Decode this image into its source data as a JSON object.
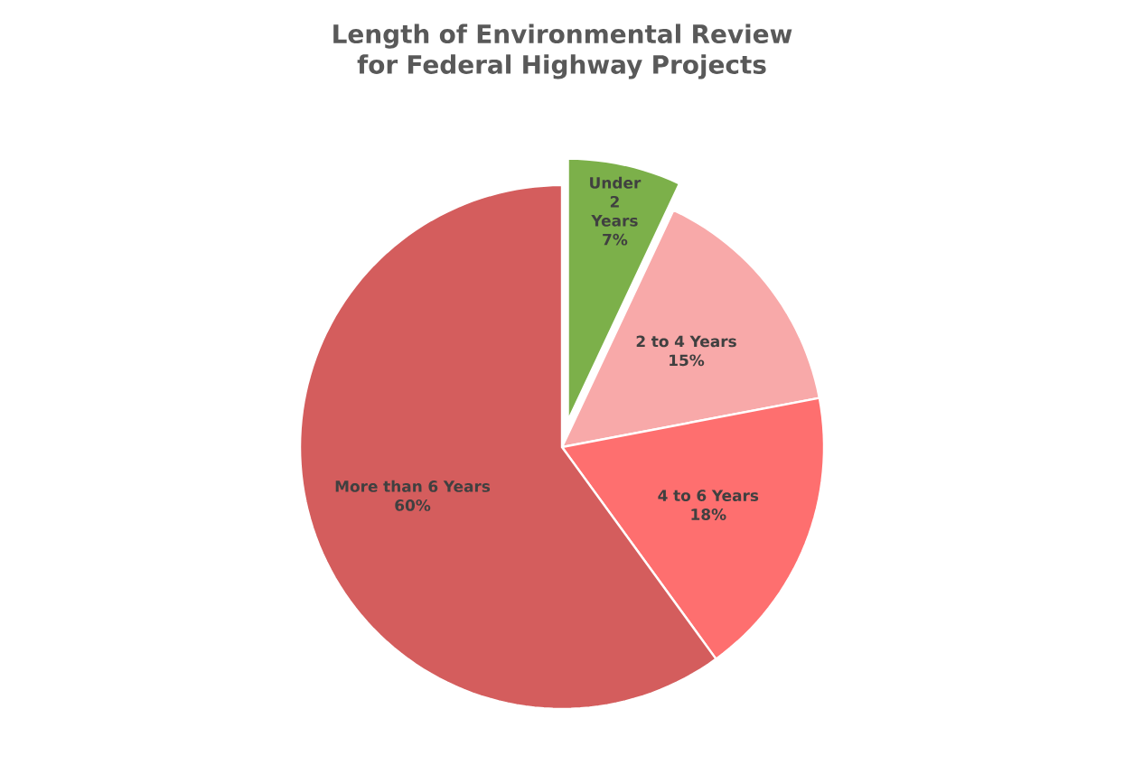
{
  "chart_data": {
    "type": "pie",
    "title": "Length of Environmental Review for Federal Highway Projects",
    "categories": [
      "Under 2 Years",
      "2 to 4 Years",
      "4 to 6 Years",
      "More than 6 Years"
    ],
    "values": [
      7,
      15,
      18,
      60
    ],
    "value_labels": [
      "7%",
      "15%",
      "18%",
      "60%"
    ],
    "colors": [
      "#7cb04a",
      "#f8a9a9",
      "#fe6f6f",
      "#d45d5d"
    ]
  }
}
